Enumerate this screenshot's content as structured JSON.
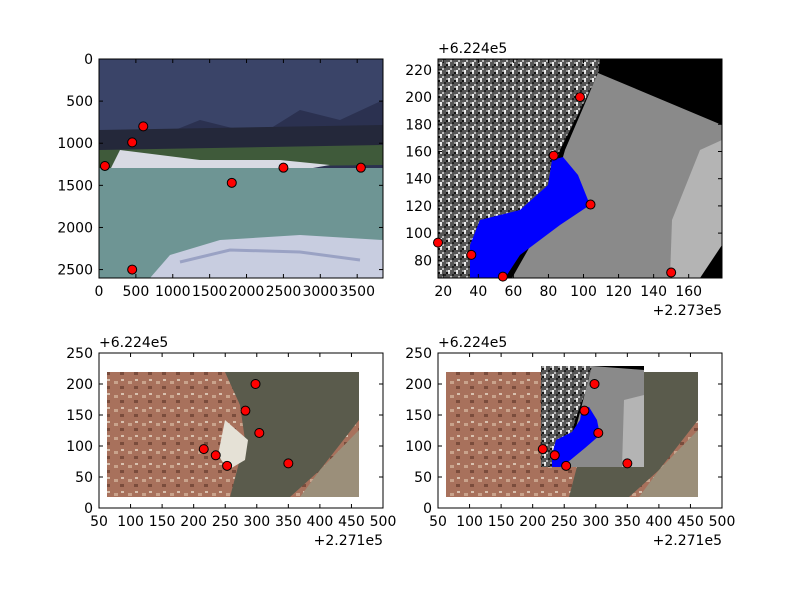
{
  "chart_data": [
    {
      "type": "scatter",
      "background": "photo",
      "xlim": [
        0,
        3850
      ],
      "ylim": [
        2600,
        0
      ],
      "y_inverted": true,
      "xticks": [
        0,
        500,
        1000,
        1500,
        2000,
        2500,
        3000,
        3500
      ],
      "xtick_labels": [
        "0",
        "500",
        "1000",
        "1500",
        "2000",
        "2500",
        "3000",
        "3500"
      ],
      "yticks": [
        0,
        500,
        1000,
        1500,
        2000,
        2500
      ],
      "ytick_labels": [
        "0",
        "500",
        "1000",
        "1500",
        "2000",
        "2500"
      ],
      "points": [
        {
          "x": 600,
          "y": 800
        },
        {
          "x": 450,
          "y": 990
        },
        {
          "x": 80,
          "y": 1270
        },
        {
          "x": 1800,
          "y": 1470
        },
        {
          "x": 2500,
          "y": 1290
        },
        {
          "x": 3550,
          "y": 1290
        },
        {
          "x": 450,
          "y": 2500
        }
      ]
    },
    {
      "type": "scatter",
      "background": "grayscale raster with blue mask",
      "x_offset_label": "+2.273e5",
      "y_offset_label": "+6.224e5",
      "xlim": [
        17,
        179
      ],
      "ylim": [
        67,
        228
      ],
      "xticks": [
        20,
        40,
        60,
        80,
        100,
        120,
        140,
        160
      ],
      "xtick_labels": [
        "20",
        "40",
        "60",
        "80",
        "100",
        "120",
        "140",
        "160"
      ],
      "yticks": [
        80,
        100,
        120,
        140,
        160,
        180,
        200,
        220
      ],
      "ytick_labels": [
        "80",
        "100",
        "120",
        "140",
        "160",
        "180",
        "200",
        "220"
      ],
      "points": [
        {
          "x": 17,
          "y": 93
        },
        {
          "x": 36,
          "y": 84
        },
        {
          "x": 54,
          "y": 68
        },
        {
          "x": 83,
          "y": 157
        },
        {
          "x": 98,
          "y": 200
        },
        {
          "x": 104,
          "y": 121
        },
        {
          "x": 150,
          "y": 71
        }
      ]
    },
    {
      "type": "scatter",
      "background": "aerial photo",
      "x_offset_label": "+2.271e5",
      "y_offset_label": "+6.224e5",
      "xlim": [
        50,
        500
      ],
      "ylim": [
        0,
        250
      ],
      "xticks": [
        50,
        100,
        150,
        200,
        250,
        300,
        350,
        400,
        450,
        500
      ],
      "xtick_labels": [
        "50",
        "100",
        "150",
        "200",
        "250",
        "300",
        "350",
        "400",
        "450",
        "500"
      ],
      "yticks": [
        0,
        50,
        100,
        150,
        200,
        250
      ],
      "ytick_labels": [
        "0",
        "50",
        "100",
        "150",
        "200",
        "250"
      ],
      "points": [
        {
          "x": 216,
          "y": 95
        },
        {
          "x": 235,
          "y": 85
        },
        {
          "x": 253,
          "y": 68
        },
        {
          "x": 282,
          "y": 157
        },
        {
          "x": 298,
          "y": 200
        },
        {
          "x": 304,
          "y": 121
        },
        {
          "x": 350,
          "y": 72
        }
      ]
    },
    {
      "type": "scatter",
      "background": "aerial photo with grayscale raster overlay",
      "x_offset_label": "+2.271e5",
      "y_offset_label": "+6.224e5",
      "xlim": [
        50,
        500
      ],
      "ylim": [
        0,
        250
      ],
      "xticks": [
        50,
        100,
        150,
        200,
        250,
        300,
        350,
        400,
        450,
        500
      ],
      "xtick_labels": [
        "50",
        "100",
        "150",
        "200",
        "250",
        "300",
        "350",
        "400",
        "450",
        "500"
      ],
      "yticks": [
        0,
        50,
        100,
        150,
        200,
        250
      ],
      "ytick_labels": [
        "0",
        "50",
        "100",
        "150",
        "200",
        "250"
      ],
      "points": [
        {
          "x": 216,
          "y": 95
        },
        {
          "x": 235,
          "y": 85
        },
        {
          "x": 253,
          "y": 68
        },
        {
          "x": 282,
          "y": 157
        },
        {
          "x": 298,
          "y": 200
        },
        {
          "x": 304,
          "y": 121
        },
        {
          "x": 350,
          "y": 72
        }
      ]
    }
  ],
  "colors": {
    "marker_fill": "#ff0000",
    "marker_edge": "#000000",
    "mask": "#0000ff",
    "water": "#6e9594",
    "cliff": "#2b3150",
    "sand": "#dcdde4",
    "aerial_rock": "#a8715c",
    "river_dark": "#5a5b4c",
    "raster_gray": "#8a8a8a"
  }
}
